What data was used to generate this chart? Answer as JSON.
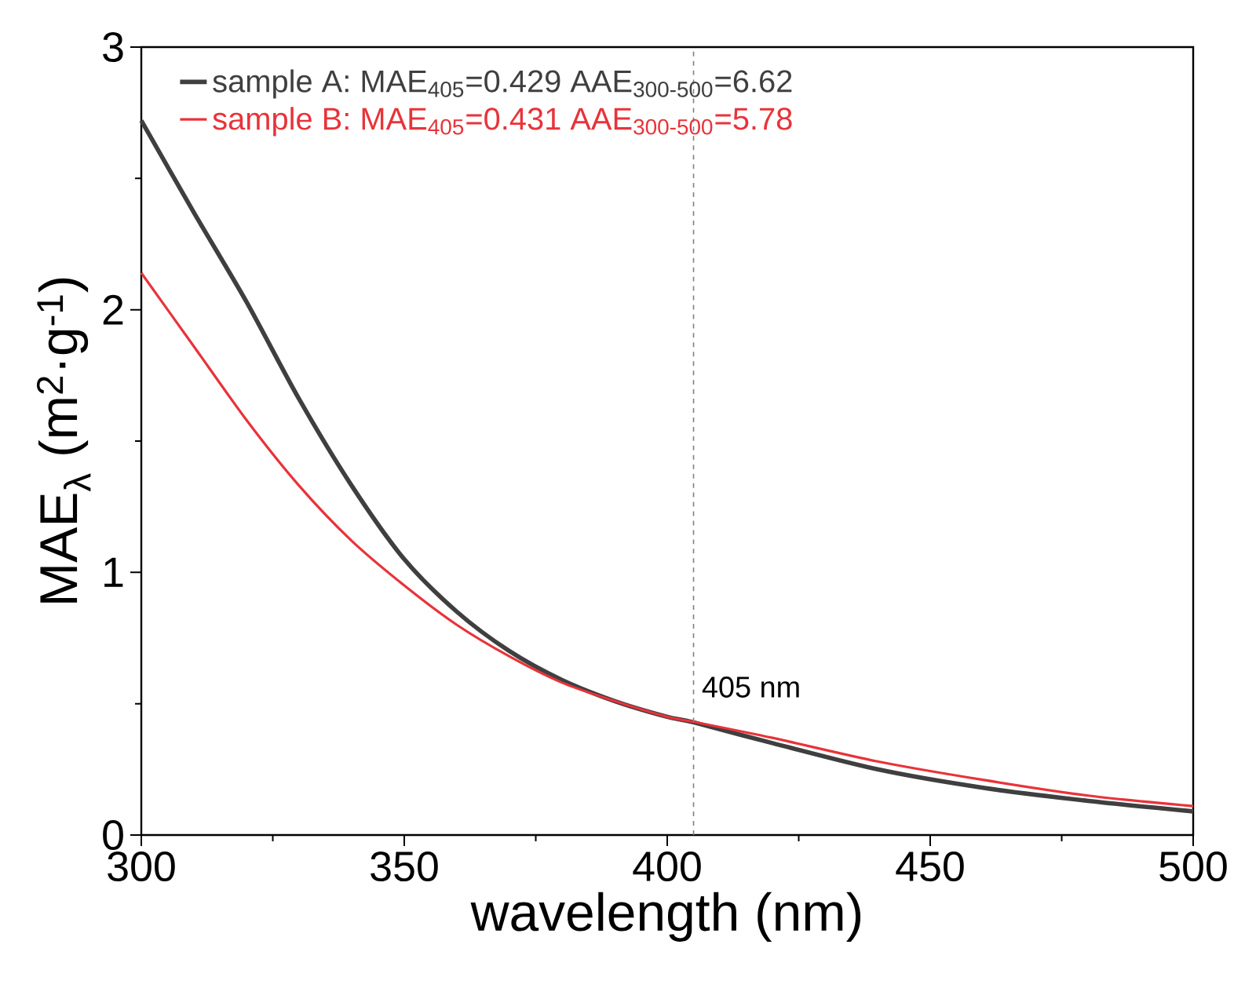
{
  "chart_data": {
    "type": "line",
    "xlabel": "wavelength (nm)",
    "ylabel": "MAE$_{λ}$ (m$^{2}$·g$^{-1}$)",
    "xlim": [
      300,
      500
    ],
    "ylim": [
      0,
      3
    ],
    "xticks": [
      300,
      350,
      400,
      450,
      500
    ],
    "yticks": [
      0,
      1,
      2,
      3
    ],
    "x": [
      300,
      310,
      320,
      330,
      340,
      350,
      360,
      370,
      380,
      390,
      400,
      405,
      420,
      440,
      460,
      480,
      500
    ],
    "series": [
      {
        "name": "sample A: MAE$_{405}$=0.429  AAE$_{300-500}$=6.62",
        "color": "#3f3f3f",
        "values": [
          2.72,
          2.37,
          2.03,
          1.66,
          1.33,
          1.05,
          0.85,
          0.7,
          0.59,
          0.51,
          0.45,
          0.429,
          0.35,
          0.25,
          0.18,
          0.13,
          0.09
        ]
      },
      {
        "name": "sample B: MAE$_{405}$=0.431  AAE$_{300-500}$=5.78",
        "color": "#e8333a",
        "values": [
          2.14,
          1.86,
          1.58,
          1.33,
          1.12,
          0.95,
          0.8,
          0.68,
          0.58,
          0.51,
          0.45,
          0.431,
          0.37,
          0.28,
          0.21,
          0.15,
          0.11
        ]
      }
    ],
    "ref_lines": [
      {
        "axis": "x",
        "value": 405,
        "label": "405 nm",
        "color": "#808080",
        "line_style": "dashed"
      }
    ],
    "legend": "top left",
    "marker": "none",
    "line_style": "solid",
    "grid": false
  }
}
